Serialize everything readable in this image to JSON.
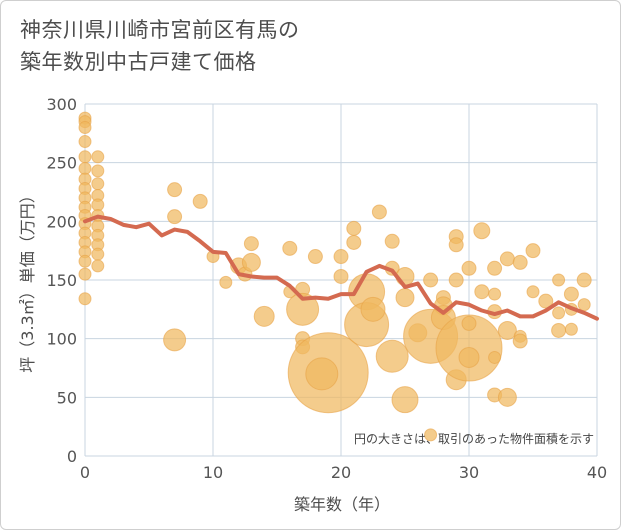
{
  "chart_data": {
    "type": "scatter",
    "title_lines": [
      "神奈川県川崎市宮前区有馬の",
      "築年数別中古戸建て価格"
    ],
    "xlabel": "築年数（年）",
    "ylabel": "坪（3.3㎡）単価（万円）",
    "xlim": [
      0,
      40
    ],
    "ylim": [
      0,
      300
    ],
    "x_ticks": [
      "0",
      "10",
      "20",
      "30",
      "40"
    ],
    "y_ticks": [
      "0",
      "50",
      "100",
      "150",
      "200",
      "250",
      "300"
    ],
    "note": "円の大きさは、取引のあった物件面積を示す",
    "grid": true,
    "colors": {
      "bubble": "#f0b860",
      "bubble_edge": "#e8a448",
      "line": "#d46a50",
      "grid": "#c8d4e0"
    },
    "bubbles": [
      {
        "x": 0,
        "y": 288,
        "r": 6
      },
      {
        "x": 0,
        "y": 285,
        "r": 6
      },
      {
        "x": 0,
        "y": 280,
        "r": 6
      },
      {
        "x": 0,
        "y": 268,
        "r": 6
      },
      {
        "x": 0,
        "y": 255,
        "r": 6
      },
      {
        "x": 0,
        "y": 245,
        "r": 6
      },
      {
        "x": 0,
        "y": 236,
        "r": 6
      },
      {
        "x": 0,
        "y": 228,
        "r": 6
      },
      {
        "x": 0,
        "y": 220,
        "r": 6
      },
      {
        "x": 0,
        "y": 212,
        "r": 6
      },
      {
        "x": 0,
        "y": 205,
        "r": 6
      },
      {
        "x": 0,
        "y": 198,
        "r": 6
      },
      {
        "x": 0,
        "y": 190,
        "r": 6
      },
      {
        "x": 0,
        "y": 182,
        "r": 6
      },
      {
        "x": 0,
        "y": 174,
        "r": 6
      },
      {
        "x": 0,
        "y": 166,
        "r": 6
      },
      {
        "x": 0,
        "y": 155,
        "r": 6
      },
      {
        "x": 0,
        "y": 134,
        "r": 6
      },
      {
        "x": 1,
        "y": 255,
        "r": 6
      },
      {
        "x": 1,
        "y": 243,
        "r": 6
      },
      {
        "x": 1,
        "y": 232,
        "r": 6
      },
      {
        "x": 1,
        "y": 222,
        "r": 6
      },
      {
        "x": 1,
        "y": 214,
        "r": 6
      },
      {
        "x": 1,
        "y": 205,
        "r": 6
      },
      {
        "x": 1,
        "y": 196,
        "r": 6
      },
      {
        "x": 1,
        "y": 188,
        "r": 6
      },
      {
        "x": 1,
        "y": 180,
        "r": 6
      },
      {
        "x": 1,
        "y": 172,
        "r": 6
      },
      {
        "x": 1,
        "y": 162,
        "r": 6
      },
      {
        "x": 7,
        "y": 227,
        "r": 7
      },
      {
        "x": 7,
        "y": 204,
        "r": 7
      },
      {
        "x": 9,
        "y": 217,
        "r": 7
      },
      {
        "x": 7,
        "y": 99,
        "r": 11
      },
      {
        "x": 10,
        "y": 170,
        "r": 6
      },
      {
        "x": 11,
        "y": 148,
        "r": 6
      },
      {
        "x": 12,
        "y": 162,
        "r": 8
      },
      {
        "x": 12.5,
        "y": 155,
        "r": 7
      },
      {
        "x": 13,
        "y": 181,
        "r": 7
      },
      {
        "x": 13,
        "y": 165,
        "r": 9
      },
      {
        "x": 14,
        "y": 119,
        "r": 10
      },
      {
        "x": 16,
        "y": 177,
        "r": 7
      },
      {
        "x": 16,
        "y": 140,
        "r": 6
      },
      {
        "x": 17,
        "y": 142,
        "r": 7
      },
      {
        "x": 17,
        "y": 125,
        "r": 16
      },
      {
        "x": 17,
        "y": 100,
        "r": 7
      },
      {
        "x": 17,
        "y": 93,
        "r": 7
      },
      {
        "x": 18,
        "y": 170,
        "r": 7
      },
      {
        "x": 19,
        "y": 71,
        "r": 40
      },
      {
        "x": 18.5,
        "y": 70,
        "r": 16
      },
      {
        "x": 20,
        "y": 170,
        "r": 7
      },
      {
        "x": 20,
        "y": 153,
        "r": 7
      },
      {
        "x": 21,
        "y": 194,
        "r": 7
      },
      {
        "x": 21,
        "y": 182,
        "r": 7
      },
      {
        "x": 22,
        "y": 140,
        "r": 18
      },
      {
        "x": 22,
        "y": 112,
        "r": 22
      },
      {
        "x": 22.5,
        "y": 125,
        "r": 12
      },
      {
        "x": 23,
        "y": 208,
        "r": 7
      },
      {
        "x": 24,
        "y": 183,
        "r": 7
      },
      {
        "x": 24,
        "y": 160,
        "r": 7
      },
      {
        "x": 24,
        "y": 85,
        "r": 16
      },
      {
        "x": 25,
        "y": 153,
        "r": 9
      },
      {
        "x": 25,
        "y": 135,
        "r": 9
      },
      {
        "x": 25,
        "y": 48,
        "r": 13
      },
      {
        "x": 26,
        "y": 105,
        "r": 9
      },
      {
        "x": 27,
        "y": 150,
        "r": 7
      },
      {
        "x": 27,
        "y": 102,
        "r": 27
      },
      {
        "x": 27,
        "y": 18,
        "r": 6
      },
      {
        "x": 28,
        "y": 135,
        "r": 7
      },
      {
        "x": 28,
        "y": 128,
        "r": 9
      },
      {
        "x": 28,
        "y": 118,
        "r": 12
      },
      {
        "x": 29,
        "y": 187,
        "r": 7
      },
      {
        "x": 29,
        "y": 180,
        "r": 7
      },
      {
        "x": 29,
        "y": 150,
        "r": 7
      },
      {
        "x": 29,
        "y": 65,
        "r": 10
      },
      {
        "x": 30,
        "y": 160,
        "r": 7
      },
      {
        "x": 30,
        "y": 92,
        "r": 33
      },
      {
        "x": 30,
        "y": 113,
        "r": 7
      },
      {
        "x": 30,
        "y": 84,
        "r": 10
      },
      {
        "x": 31,
        "y": 192,
        "r": 8
      },
      {
        "x": 31,
        "y": 140,
        "r": 7
      },
      {
        "x": 32,
        "y": 160,
        "r": 7
      },
      {
        "x": 32,
        "y": 138,
        "r": 6
      },
      {
        "x": 32,
        "y": 123,
        "r": 7
      },
      {
        "x": 32,
        "y": 84,
        "r": 6
      },
      {
        "x": 32,
        "y": 52,
        "r": 7
      },
      {
        "x": 33,
        "y": 168,
        "r": 7
      },
      {
        "x": 33,
        "y": 107,
        "r": 9
      },
      {
        "x": 33,
        "y": 50,
        "r": 9
      },
      {
        "x": 34,
        "y": 165,
        "r": 7
      },
      {
        "x": 34,
        "y": 102,
        "r": 6
      },
      {
        "x": 34,
        "y": 98,
        "r": 7
      },
      {
        "x": 35,
        "y": 175,
        "r": 7
      },
      {
        "x": 35,
        "y": 140,
        "r": 6
      },
      {
        "x": 36,
        "y": 132,
        "r": 7
      },
      {
        "x": 37,
        "y": 150,
        "r": 6
      },
      {
        "x": 37,
        "y": 122,
        "r": 6
      },
      {
        "x": 37,
        "y": 107,
        "r": 7
      },
      {
        "x": 38,
        "y": 138,
        "r": 7
      },
      {
        "x": 38,
        "y": 125,
        "r": 6
      },
      {
        "x": 38,
        "y": 108,
        "r": 6
      },
      {
        "x": 39,
        "y": 150,
        "r": 7
      },
      {
        "x": 39,
        "y": 129,
        "r": 6
      }
    ],
    "trend": {
      "x": [
        0,
        1,
        2,
        3,
        4,
        5,
        6,
        7,
        8,
        9,
        10,
        11,
        12,
        13,
        14,
        15,
        16,
        17,
        18,
        19,
        20,
        21,
        22,
        23,
        24,
        25,
        26,
        27,
        28,
        29,
        30,
        31,
        32,
        33,
        34,
        35,
        36,
        37,
        38,
        39,
        40
      ],
      "y": [
        200,
        204,
        202,
        197,
        195,
        198,
        188,
        193,
        191,
        183,
        174,
        173,
        155,
        153,
        152,
        152,
        145,
        134,
        135,
        134,
        138,
        138,
        157,
        162,
        158,
        144,
        147,
        130,
        122,
        131,
        129,
        124,
        121,
        124,
        119,
        119,
        124,
        131,
        126,
        122,
        117
      ]
    }
  }
}
